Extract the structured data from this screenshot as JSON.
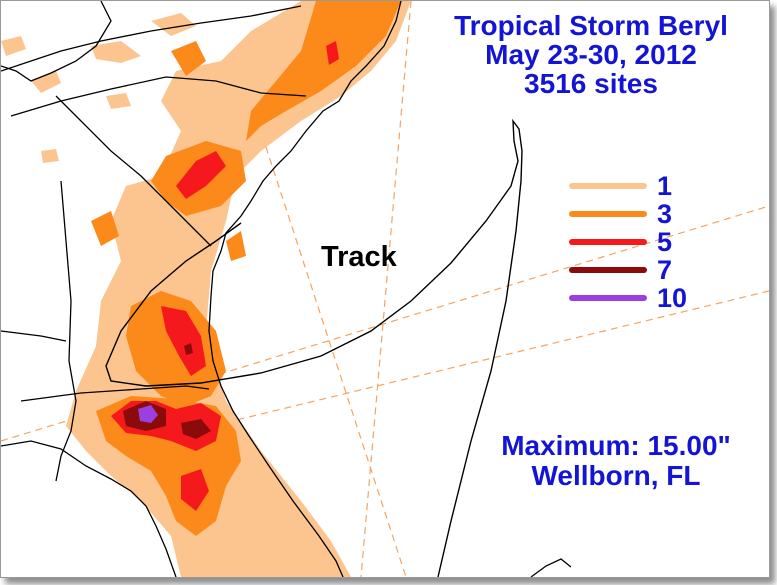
{
  "title": {
    "line1": "Tropical Storm Beryl",
    "line2": "May 23-30, 2012",
    "line3": "3516 sites"
  },
  "track_label": "Track",
  "legend": {
    "items": [
      {
        "value": "1",
        "color": "#fcc590"
      },
      {
        "value": "3",
        "color": "#fb8a1a"
      },
      {
        "value": "5",
        "color": "#f5191e"
      },
      {
        "value": "7",
        "color": "#8b0a0a"
      },
      {
        "value": "10",
        "color": "#9b3fe0"
      }
    ]
  },
  "maximum": {
    "line1": "Maximum:  15.00\"",
    "line2": "Wellborn, FL"
  },
  "colors": {
    "text_blue": "#1414d4",
    "rain_1": "#fcc590",
    "rain_3": "#fb8a1a",
    "rain_5": "#f5191e",
    "rain_7": "#8b0a0a",
    "rain_10": "#9b3fe0",
    "graticule": "#f4a460"
  }
}
